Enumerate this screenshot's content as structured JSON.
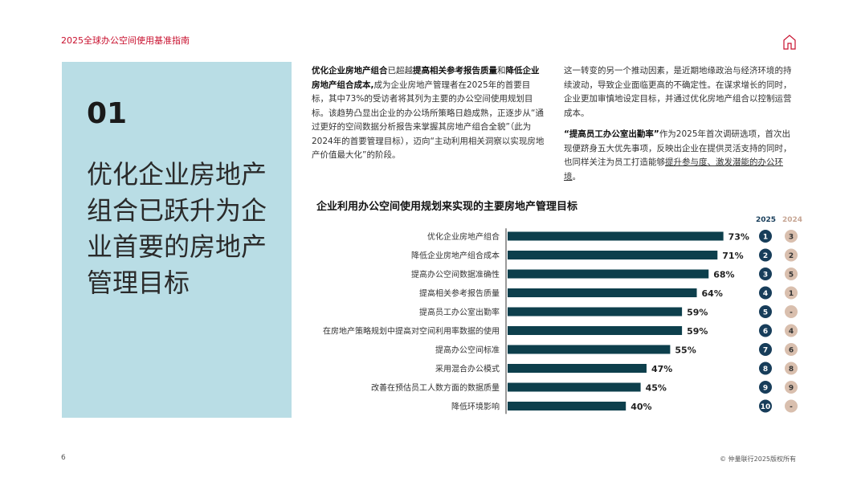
{
  "header": {
    "title": "2025全球办公空间使用基准指南"
  },
  "side": {
    "number": "01",
    "title": "优化企业房地产组合已跃升为企业首要的房地产管理目标"
  },
  "body": {
    "col1": {
      "b1": "优化企业房地产组合",
      "t1": "已超越",
      "b2": "提高相关参考报告质量",
      "t2": "和",
      "b3": "降低企业房地产组合成本,",
      "t3": "成为企业房地产管理者在2025年的首要目标，其中73%的受访者将其列为主要的办公空间使用规划目标。该趋势凸显出企业的办公场所策略日趋成熟，正逐步从“通过更好的空间数据分析报告来掌握其房地产组合全貌”（此为2024年的首要管理目标），迈向“主动利用相关洞察以实现房地产价值最大化”的阶段。"
    },
    "col2": {
      "t1": "这一转变的另一个推动因素，是近期地缘政治与经济环境的持续波动，导致企业面临更高的不确定性。在谋求增长的同时，企业更加审慎地设定目标，并通过优化房地产组合以控制运营成本。"
    },
    "col3": {
      "b1": "“提高员工办公室出勤率”",
      "t1": "作为2025年首次调研选项，首次出现便跻身五大优先事项，反映出企业在提供灵活支持的同时，也同样关注为员工打造能够",
      "u1": "提升参与度、激发潜能的办公环境",
      "t2": "。"
    }
  },
  "chart_title": "企业利用办公空间使用规划来实现的主要房地产管理目标",
  "years": {
    "current": "2025",
    "previous": "2024"
  },
  "colors": {
    "bar": "#0d3f4c",
    "rank_2025": "#173d5a",
    "rank_2024": "#d9bfae",
    "accent": "#c8102e"
  },
  "chart_data": {
    "type": "bar",
    "orientation": "horizontal",
    "categories": [
      "优化企业房地产组合",
      "降低企业房地产组合成本",
      "提高办公空间数据准确性",
      "提高相关参考报告质量",
      "提高员工办公室出勤率",
      "在房地产策略规划中提高对空间利用率数据的使用",
      "提高办公空间标准",
      "采用混合办公模式",
      "改善在预估员工人数方面的数据质量",
      "降低环境影响"
    ],
    "values": [
      73,
      71,
      68,
      64,
      59,
      59,
      55,
      47,
      45,
      40
    ],
    "value_labels": [
      "73%",
      "71%",
      "68%",
      "64%",
      "59%",
      "59%",
      "55%",
      "47%",
      "45%",
      "40%"
    ],
    "rank_2025": [
      "1",
      "2",
      "3",
      "4",
      "5",
      "6",
      "7",
      "8",
      "9",
      "10"
    ],
    "rank_2024": [
      "3",
      "2",
      "5",
      "1",
      "-",
      "4",
      "6",
      "8",
      "9",
      "-"
    ],
    "xlim": [
      0,
      100
    ]
  },
  "footer": {
    "page": "6",
    "copyright": "© 仲量联行2025版权所有"
  }
}
